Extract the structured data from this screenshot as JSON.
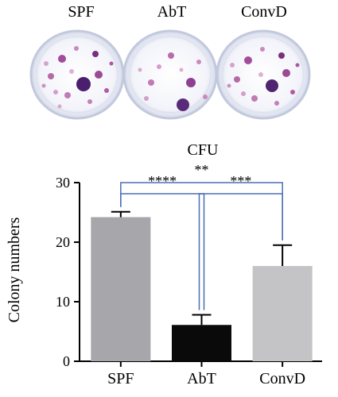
{
  "plates": {
    "labels": [
      "SPF",
      "AbT",
      "ConvD"
    ]
  },
  "chart_data": {
    "type": "bar",
    "title": "CFU",
    "xlabel": "",
    "ylabel": "Colony numbers",
    "categories": [
      "SPF",
      "AbT",
      "ConvD"
    ],
    "values": [
      24.2,
      6.1,
      16.0
    ],
    "errors": [
      0.9,
      1.7,
      3.5
    ],
    "ylim": [
      0,
      30
    ],
    "yticks": [
      0,
      10,
      20,
      30
    ],
    "bar_colors": [
      "#a6a6ab",
      "#0a0a0a",
      "#c4c4c7"
    ],
    "significance": [
      {
        "from": "SPF",
        "to": "AbT",
        "label": "****"
      },
      {
        "from": "AbT",
        "to": "ConvD",
        "label": "***"
      },
      {
        "from": "SPF",
        "to": "ConvD",
        "label": "**"
      }
    ],
    "grid": false,
    "legend": "none"
  },
  "colors": {
    "bracket": "#4a6fb5",
    "plate_edge": "#c9cfe0",
    "colony": "#8a3f8f"
  }
}
